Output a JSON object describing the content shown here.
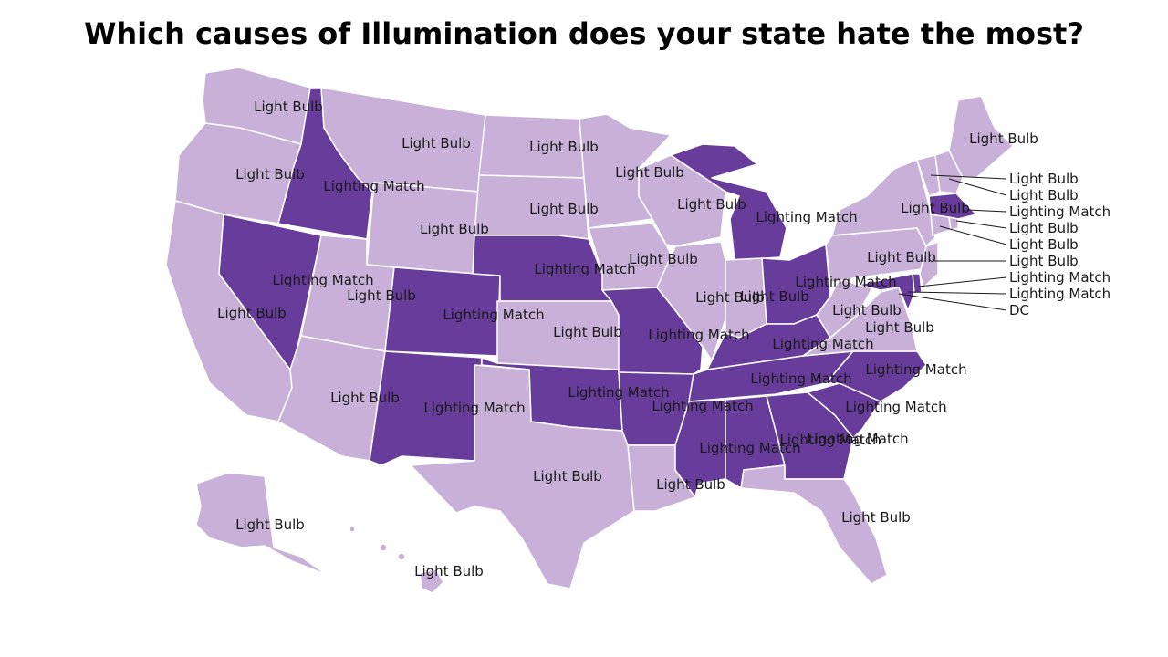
{
  "title": "Which causes of Illumination does your state hate the most?",
  "colors": {
    "light_bulb": "#c8b0d8",
    "lighting_match": "#673c9b"
  },
  "states": {
    "WA": "Light Bulb",
    "OR": "Light Bulb",
    "CA": "Light Bulb",
    "ID": "Lighting Match",
    "NV": "Lighting Match",
    "MT": "Light Bulb",
    "WY": "Light Bulb",
    "UT": "Light Bulb",
    "AZ": "Light Bulb",
    "CO": "Lighting Match",
    "NM": "Lighting Match",
    "ND": "Light Bulb",
    "SD": "Light Bulb",
    "NE": "Lighting Match",
    "KS": "Light Bulb",
    "OK": "Lighting Match",
    "TX": "Light Bulb",
    "MN": "Light Bulb",
    "IA": "Light Bulb",
    "MO": "Lighting Match",
    "AR": "Lighting Match",
    "LA": "Light Bulb",
    "WI": "Light Bulb",
    "MI": "Lighting Match",
    "IL": "Light Bulb",
    "IN": "Light Bulb",
    "OH": "Lighting Match",
    "KY": "Lighting Match",
    "TN": "Lighting Match",
    "MS": "Lighting Match",
    "AL": "Lighting Match",
    "GA": "Lighting Match",
    "FL": "Light Bulb",
    "SC": "Lighting Match",
    "NC": "Lighting Match",
    "VA": "Light Bulb",
    "WV": "Light Bulb",
    "PA": "Light Bulb",
    "NY": "Light Bulb",
    "ME": "Light Bulb",
    "AK": "Light Bulb",
    "HI": "Light Bulb",
    "VT": "Light Bulb",
    "NH": "Light Bulb",
    "MA": "Lighting Match",
    "RI": "Light Bulb",
    "CT": "Light Bulb",
    "NJ": "Light Bulb",
    "DE": "Lighting Match",
    "MD": "Lighting Match",
    "DC": "DC"
  }
}
